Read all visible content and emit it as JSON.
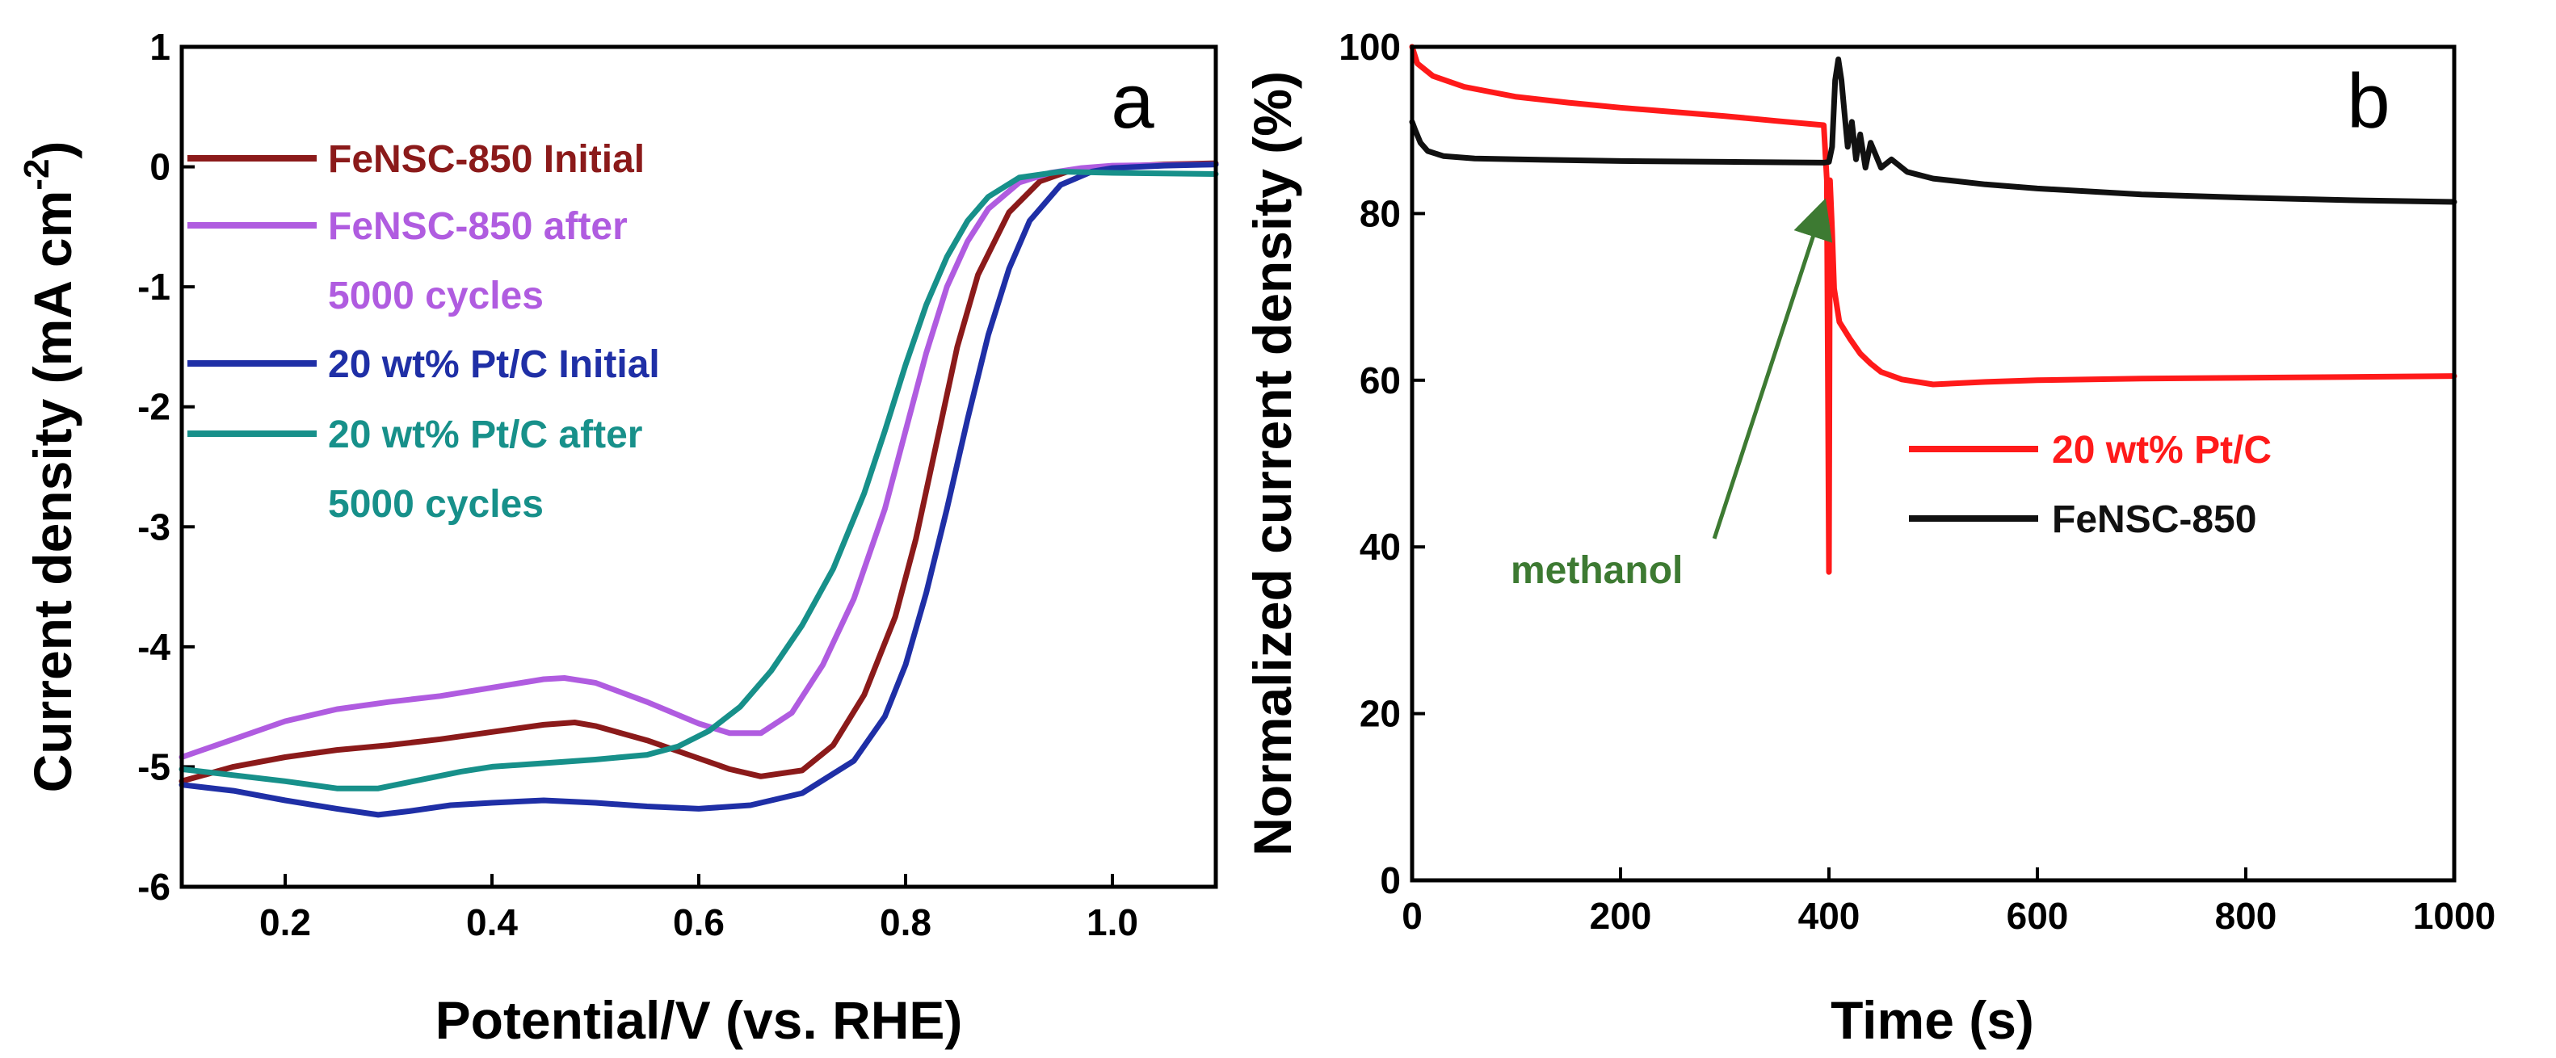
{
  "chart_data": [
    {
      "panel": "a",
      "type": "line",
      "title": "",
      "xlabel": "Potential/V (vs. RHE)",
      "ylabel_main": "Current density (mA cm",
      "ylabel_sup": "-2",
      "ylabel_end": ")",
      "xlim": [
        0.1,
        1.1
      ],
      "ylim": [
        -6,
        1
      ],
      "xticks": [
        0.2,
        0.4,
        0.6,
        0.8,
        1.0
      ],
      "xtick_labels": [
        "0.2",
        "0.4",
        "0.6",
        "0.8",
        "1.0"
      ],
      "yticks": [
        1,
        0,
        -1,
        -2,
        -3,
        -4,
        -5,
        -6
      ],
      "ytick_labels": [
        "1",
        "0",
        "-1",
        "-2",
        "-3",
        "-4",
        "-5",
        "-6"
      ],
      "grid": false,
      "legend_position": "top-left",
      "series": [
        {
          "name": "FeNSC-850 Initial",
          "legend_lines": [
            "FeNSC-850 Initial"
          ],
          "color": "#8b1a1a",
          "x": [
            0.1,
            0.15,
            0.2,
            0.25,
            0.3,
            0.35,
            0.4,
            0.45,
            0.48,
            0.5,
            0.55,
            0.6,
            0.63,
            0.66,
            0.7,
            0.73,
            0.76,
            0.79,
            0.81,
            0.83,
            0.85,
            0.87,
            0.9,
            0.93,
            0.96,
            1.0,
            1.05,
            1.1
          ],
          "y": [
            -5.12,
            -5.0,
            -4.92,
            -4.86,
            -4.82,
            -4.77,
            -4.71,
            -4.65,
            -4.63,
            -4.66,
            -4.78,
            -4.93,
            -5.02,
            -5.08,
            -5.03,
            -4.82,
            -4.4,
            -3.75,
            -3.1,
            -2.3,
            -1.5,
            -0.9,
            -0.38,
            -0.12,
            -0.03,
            0.0,
            0.02,
            0.03
          ]
        },
        {
          "name": "FeNSC-850 after 5000 cycles",
          "legend_lines": [
            "FeNSC-850 after",
            "5000 cycles"
          ],
          "color": "#b05ce0",
          "x": [
            0.1,
            0.15,
            0.2,
            0.25,
            0.3,
            0.35,
            0.4,
            0.45,
            0.47,
            0.5,
            0.55,
            0.6,
            0.63,
            0.66,
            0.69,
            0.72,
            0.75,
            0.78,
            0.8,
            0.82,
            0.84,
            0.86,
            0.88,
            0.91,
            0.94,
            0.97,
            1.0,
            1.1
          ],
          "y": [
            -4.92,
            -4.77,
            -4.62,
            -4.52,
            -4.46,
            -4.41,
            -4.34,
            -4.27,
            -4.26,
            -4.3,
            -4.46,
            -4.64,
            -4.72,
            -4.72,
            -4.55,
            -4.15,
            -3.6,
            -2.85,
            -2.2,
            -1.55,
            -1.0,
            -0.62,
            -0.35,
            -0.13,
            -0.05,
            -0.01,
            0.01,
            0.02
          ]
        },
        {
          "name": "20 wt% Pt/C Initial",
          "legend_lines": [
            "20 wt% Pt/C Initial"
          ],
          "color": "#1f2fa6",
          "x": [
            0.1,
            0.15,
            0.2,
            0.25,
            0.29,
            0.32,
            0.36,
            0.4,
            0.45,
            0.5,
            0.55,
            0.6,
            0.65,
            0.7,
            0.75,
            0.78,
            0.8,
            0.82,
            0.84,
            0.86,
            0.88,
            0.9,
            0.92,
            0.95,
            0.98,
            1.0,
            1.05,
            1.1
          ],
          "y": [
            -5.15,
            -5.2,
            -5.28,
            -5.35,
            -5.4,
            -5.37,
            -5.32,
            -5.3,
            -5.28,
            -5.3,
            -5.33,
            -5.35,
            -5.32,
            -5.22,
            -4.95,
            -4.58,
            -4.15,
            -3.55,
            -2.85,
            -2.1,
            -1.4,
            -0.85,
            -0.45,
            -0.15,
            -0.04,
            -0.01,
            0.01,
            0.02
          ]
        },
        {
          "name": "20 wt% Pt/C after 5000 cycles",
          "legend_lines": [
            "20 wt% Pt/C after",
            "5000 cycles"
          ],
          "color": "#17908a",
          "x": [
            0.1,
            0.15,
            0.2,
            0.25,
            0.29,
            0.33,
            0.37,
            0.4,
            0.45,
            0.5,
            0.55,
            0.58,
            0.61,
            0.64,
            0.67,
            0.7,
            0.73,
            0.76,
            0.78,
            0.8,
            0.82,
            0.84,
            0.86,
            0.88,
            0.91,
            0.95,
            1.0,
            1.1
          ],
          "y": [
            -5.02,
            -5.07,
            -5.12,
            -5.18,
            -5.18,
            -5.11,
            -5.04,
            -5.0,
            -4.97,
            -4.94,
            -4.9,
            -4.83,
            -4.7,
            -4.5,
            -4.2,
            -3.82,
            -3.35,
            -2.72,
            -2.2,
            -1.65,
            -1.15,
            -0.75,
            -0.45,
            -0.25,
            -0.09,
            -0.04,
            -0.05,
            -0.06
          ]
        }
      ]
    },
    {
      "panel": "b",
      "type": "line",
      "title": "",
      "xlabel": "Time (s)",
      "ylabel": "Normalized current density (%)",
      "xlim": [
        0,
        1000
      ],
      "ylim": [
        0,
        100
      ],
      "xticks": [
        0,
        200,
        400,
        600,
        800,
        1000
      ],
      "xtick_labels": [
        "0",
        "200",
        "400",
        "600",
        "800",
        "1000"
      ],
      "yticks": [
        0,
        20,
        40,
        60,
        80,
        100
      ],
      "ytick_labels": [
        "0",
        "20",
        "40",
        "60",
        "80",
        "100"
      ],
      "grid": false,
      "legend_position": "middle-right",
      "series": [
        {
          "name": "20 wt% Pt/C",
          "color": "#ff1a1a",
          "x": [
            0,
            5,
            20,
            50,
            100,
            150,
            200,
            250,
            300,
            350,
            395,
            398,
            400,
            401,
            403,
            405,
            410,
            420,
            430,
            440,
            450,
            470,
            500,
            550,
            600,
            700,
            800,
            900,
            1000
          ],
          "y": [
            100,
            98,
            96.5,
            95.2,
            94,
            93.3,
            92.7,
            92.2,
            91.7,
            91.1,
            90.6,
            84,
            37,
            84,
            78,
            71,
            67,
            65,
            63.2,
            62,
            61,
            60.1,
            59.5,
            59.8,
            60,
            60.2,
            60.3,
            60.4,
            60.5
          ]
        },
        {
          "name": "FeNSC-850",
          "color": "#111111",
          "x": [
            0,
            3,
            8,
            15,
            30,
            60,
            100,
            200,
            300,
            395,
            400,
            403,
            406,
            409,
            412,
            415,
            418,
            422,
            426,
            430,
            435,
            440,
            450,
            460,
            475,
            500,
            550,
            600,
            700,
            800,
            900,
            1000
          ],
          "y": [
            91,
            90,
            88.5,
            87.5,
            86.9,
            86.6,
            86.5,
            86.3,
            86.2,
            86.1,
            86.2,
            88,
            96,
            98.5,
            96,
            92,
            88,
            91,
            86.5,
            89.5,
            85.5,
            88.5,
            85.5,
            86.5,
            85,
            84.2,
            83.5,
            83,
            82.3,
            81.9,
            81.6,
            81.4
          ]
        }
      ],
      "annotation": {
        "text": "methanol",
        "color": "#3d7a32",
        "arrow_from": [
          290,
          41
        ],
        "arrow_to": [
          392,
          80
        ]
      }
    }
  ],
  "panel_letters": [
    "a",
    "b"
  ]
}
